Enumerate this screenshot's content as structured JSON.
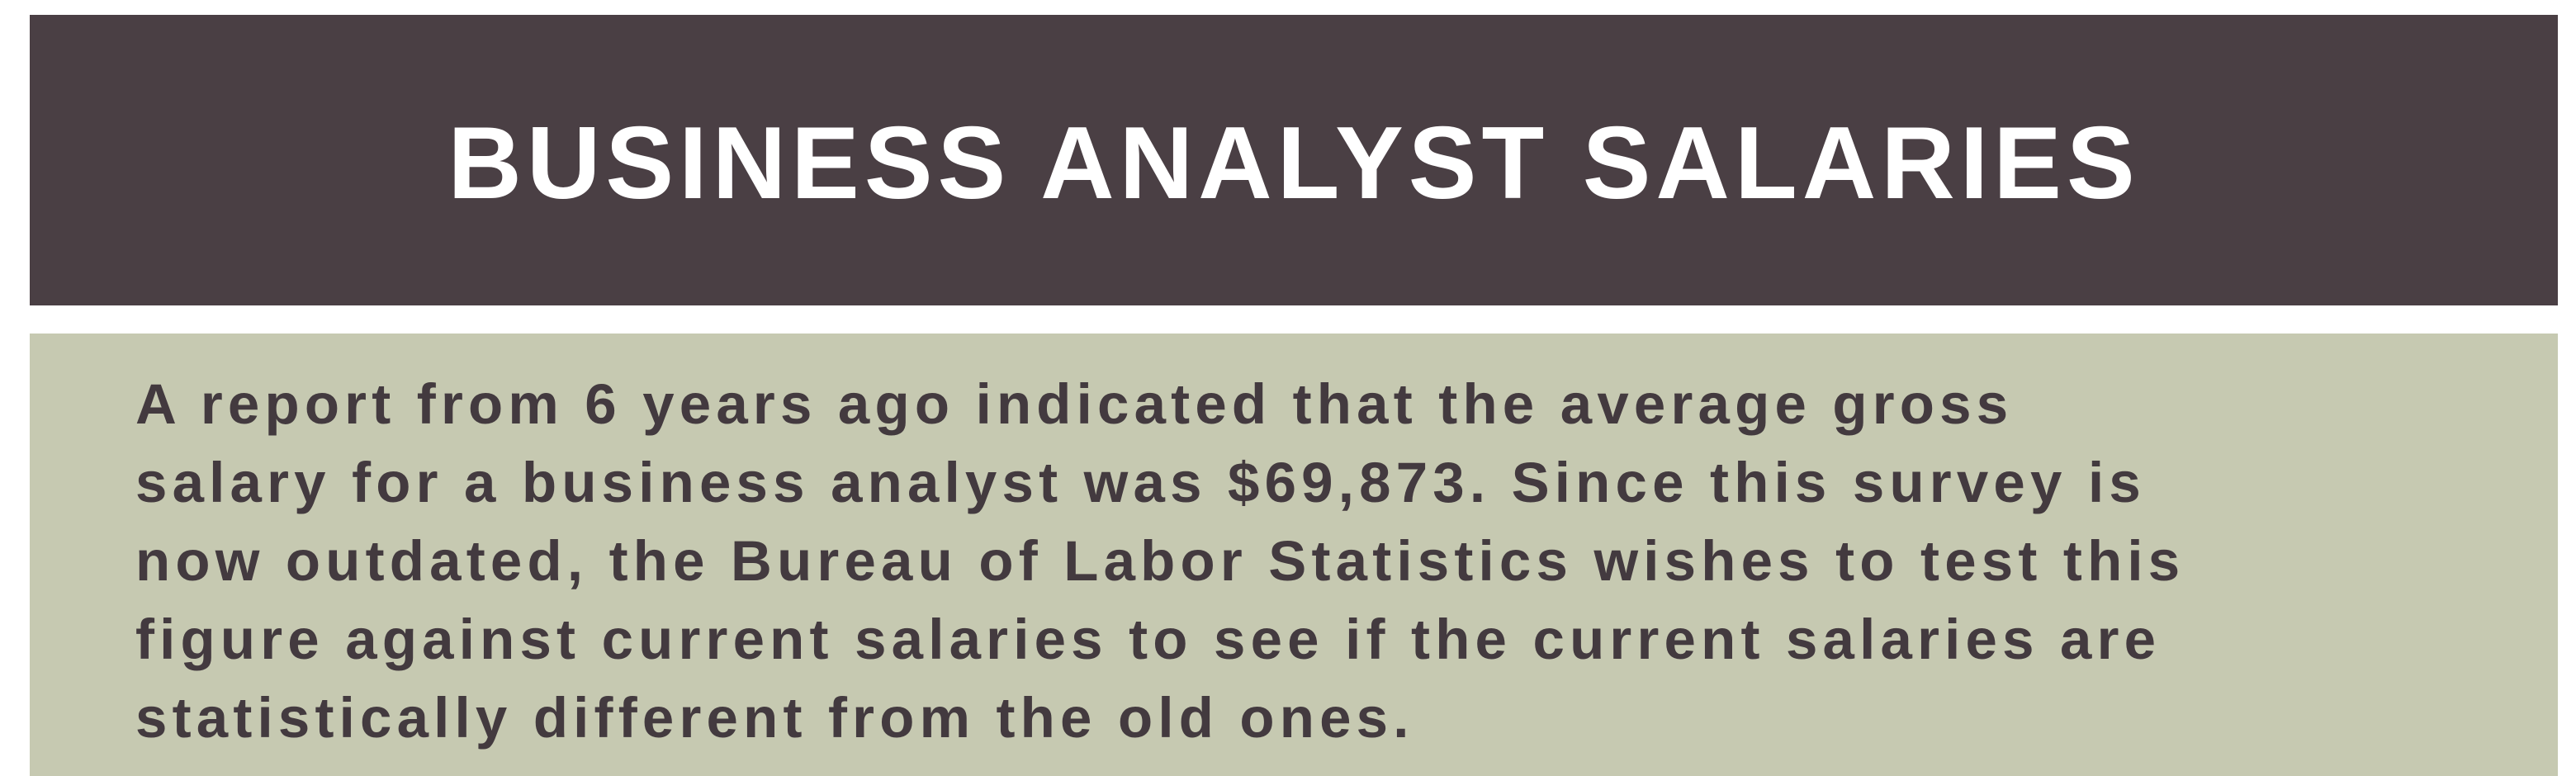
{
  "slide": {
    "title": "BUSINESS ANALYST SALARIES",
    "body_lines": [
      "A report from 6 years ago indicated that the average gross",
      "salary for a business analyst was $69,873. Since this survey is",
      "now outdated, the Bureau of Labor Statistics wishes to test this",
      "figure against current salaries to see if the current salaries are",
      "statistically different from the old ones."
    ]
  },
  "colors": {
    "title_bar": "#4a3f44",
    "title_text": "#ffffff",
    "content_box": "#c6c9b1",
    "body_text": "#433a3f"
  }
}
